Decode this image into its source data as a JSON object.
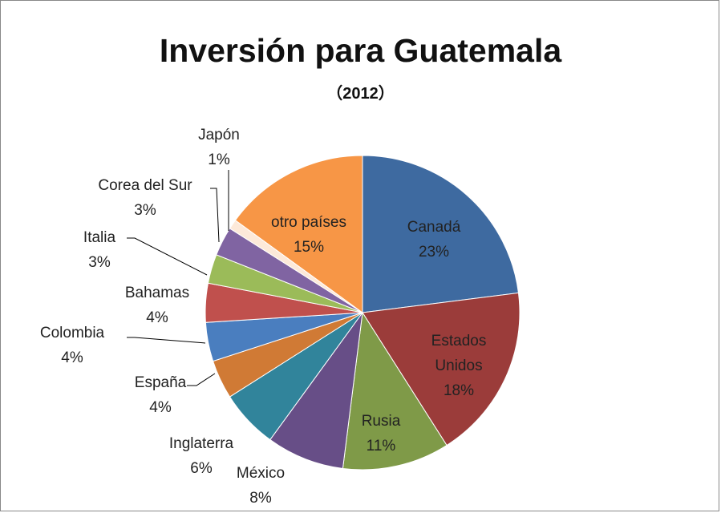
{
  "chart_data": {
    "type": "pie",
    "title": "Inversión para Guatemala",
    "subtitle": "（2012）",
    "categories": [
      "Canadá",
      "Estados Unidos",
      "Rusia",
      "México",
      "Inglaterra",
      "España",
      "Colombia",
      "Bahamas",
      "Italia",
      "Corea del Sur",
      "Japón",
      "otro países"
    ],
    "values": [
      23,
      18,
      11,
      8,
      6,
      4,
      4,
      4,
      3,
      3,
      1,
      15
    ],
    "value_labels": [
      "23%",
      "18%",
      "11%",
      "8%",
      "6%",
      "4%",
      "4%",
      "4%",
      "3%",
      "3%",
      "1%",
      "15%"
    ],
    "colors": [
      "#3e6aa0",
      "#9b3c3a",
      "#7f9a48",
      "#674e87",
      "#31849b",
      "#d07a35",
      "#4a7ebf",
      "#c0504d",
      "#9bbb59",
      "#8064a2",
      "#fde9d9",
      "#f79646"
    ]
  }
}
